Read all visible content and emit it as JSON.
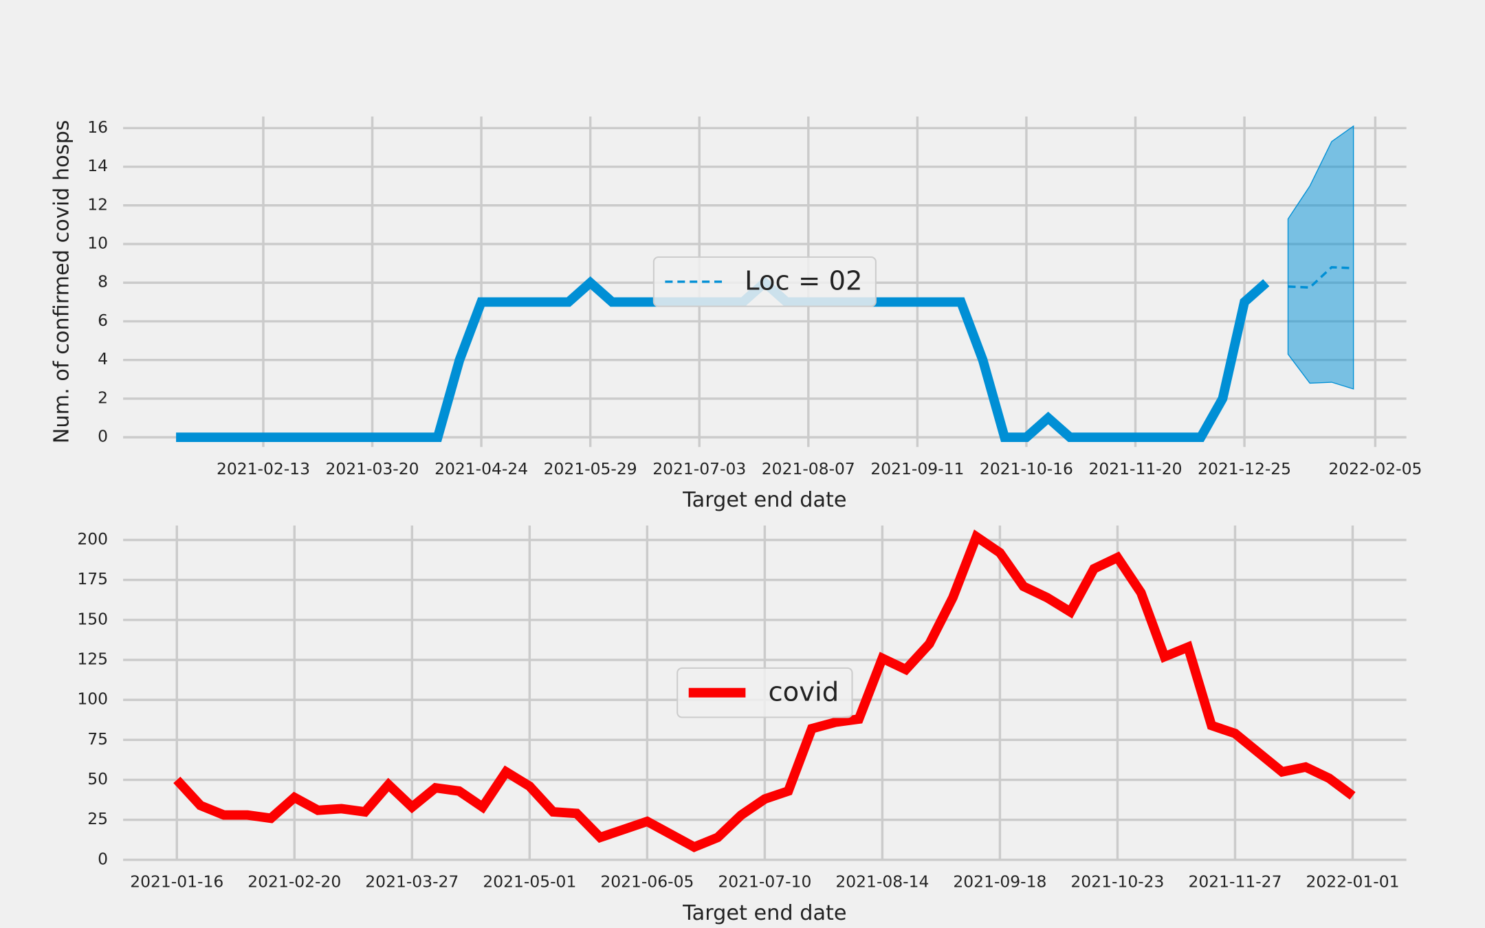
{
  "chart_data": [
    {
      "type": "line",
      "y_label": "Num. of confirmed covid hosps",
      "x_label": "Target end date",
      "grid": true,
      "legend": "center",
      "x": [
        "2021-01-16",
        "2021-01-23",
        "2021-01-30",
        "2021-02-06",
        "2021-02-13",
        "2021-02-20",
        "2021-02-27",
        "2021-03-06",
        "2021-03-13",
        "2021-03-20",
        "2021-03-27",
        "2021-04-03",
        "2021-04-10",
        "2021-04-17",
        "2021-04-24",
        "2021-05-01",
        "2021-05-08",
        "2021-05-15",
        "2021-05-22",
        "2021-05-29",
        "2021-06-05",
        "2021-06-12",
        "2021-06-19",
        "2021-06-26",
        "2021-07-03",
        "2021-07-10",
        "2021-07-17",
        "2021-07-24",
        "2021-07-31",
        "2021-08-07",
        "2021-08-14",
        "2021-08-21",
        "2021-08-28",
        "2021-09-04",
        "2021-09-11",
        "2021-09-18",
        "2021-09-25",
        "2021-10-02",
        "2021-10-09",
        "2021-10-16",
        "2021-10-23",
        "2021-10-30",
        "2021-11-06",
        "2021-11-13",
        "2021-11-20",
        "2021-11-27",
        "2021-12-04",
        "2021-12-11",
        "2021-12-18",
        "2021-12-25",
        "2022-01-01"
      ],
      "series": [
        {
          "color": "#008fd5",
          "values": [
            0,
            0,
            0,
            0,
            0,
            0,
            0,
            0,
            0,
            0,
            0,
            0,
            0,
            4,
            7,
            7,
            7,
            7,
            7,
            8,
            7,
            7,
            7,
            7,
            7,
            7,
            7,
            8,
            7,
            7,
            7,
            7,
            7,
            7,
            7,
            7,
            7,
            4,
            0,
            0,
            1,
            0,
            0,
            0,
            0,
            0,
            0,
            0,
            2,
            7,
            8
          ]
        },
        {
          "name": "Loc = 02",
          "color": "#008fd5",
          "dashed": true,
          "x": [
            "2022-01-08",
            "2022-01-15",
            "2022-01-22",
            "2022-01-29"
          ],
          "values": [
            7.8,
            7.75,
            8.8,
            8.75
          ],
          "lower": [
            4.3,
            2.8,
            2.85,
            2.5
          ],
          "upper": [
            11.3,
            13.0,
            15.3,
            16.1
          ]
        }
      ],
      "xlim": [
        "2020-12-30",
        "2022-02-15"
      ],
      "xticks": [
        "2021-02-13",
        "2021-03-20",
        "2021-04-24",
        "2021-05-29",
        "2021-07-03",
        "2021-08-07",
        "2021-09-11",
        "2021-10-16",
        "2021-11-20",
        "2021-12-25",
        "2022-02-05"
      ],
      "ylim": [
        -0.5,
        16.6
      ],
      "yticks": [
        0,
        2,
        4,
        6,
        8,
        10,
        12,
        14,
        16
      ]
    },
    {
      "type": "line",
      "x_label": "Target end date",
      "grid": true,
      "legend": "center",
      "x": [
        "2021-01-16",
        "2021-01-23",
        "2021-01-30",
        "2021-02-06",
        "2021-02-13",
        "2021-02-20",
        "2021-02-27",
        "2021-03-06",
        "2021-03-13",
        "2021-03-20",
        "2021-03-27",
        "2021-04-03",
        "2021-04-10",
        "2021-04-17",
        "2021-04-24",
        "2021-05-01",
        "2021-05-08",
        "2021-05-15",
        "2021-05-22",
        "2021-05-29",
        "2021-06-05",
        "2021-06-12",
        "2021-06-19",
        "2021-06-26",
        "2021-07-03",
        "2021-07-10",
        "2021-07-17",
        "2021-07-24",
        "2021-07-31",
        "2021-08-07",
        "2021-08-14",
        "2021-08-21",
        "2021-08-28",
        "2021-09-04",
        "2021-09-11",
        "2021-09-18",
        "2021-09-25",
        "2021-10-02",
        "2021-10-09",
        "2021-10-16",
        "2021-10-23",
        "2021-10-30",
        "2021-11-06",
        "2021-11-13",
        "2021-11-20",
        "2021-11-27",
        "2021-12-04",
        "2021-12-11",
        "2021-12-18",
        "2021-12-25",
        "2022-01-01"
      ],
      "series": [
        {
          "name": "covid",
          "color": "#fc0000",
          "values": [
            50,
            34,
            28,
            28,
            26,
            39,
            31,
            32,
            30,
            47,
            33,
            45,
            43,
            33,
            55,
            46,
            30,
            29,
            14,
            19,
            24,
            16,
            8,
            14,
            28,
            38,
            43,
            82,
            86,
            88,
            126,
            119,
            135,
            164,
            202,
            192,
            171,
            164,
            155,
            182,
            189,
            167,
            127,
            133,
            84,
            79,
            67,
            55,
            58,
            51,
            40
          ]
        }
      ],
      "xlim": [
        "2020-12-31",
        "2022-01-17"
      ],
      "xticks": [
        "2021-01-16",
        "2021-02-20",
        "2021-03-27",
        "2021-05-01",
        "2021-06-05",
        "2021-07-10",
        "2021-08-14",
        "2021-09-18",
        "2021-10-23",
        "2021-11-27",
        "2022-01-01"
      ],
      "ylim": [
        0,
        209
      ],
      "yticks": [
        0,
        25,
        50,
        75,
        100,
        125,
        150,
        175,
        200
      ]
    }
  ]
}
